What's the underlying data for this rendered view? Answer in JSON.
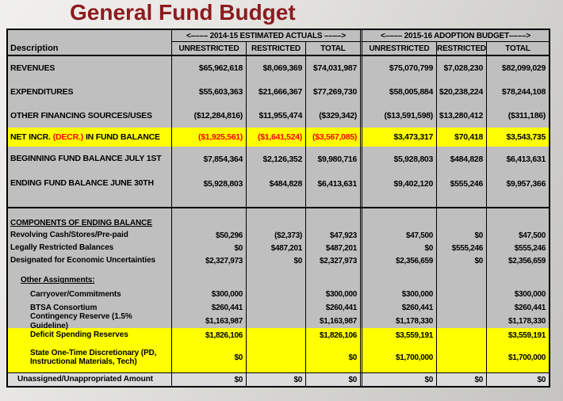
{
  "title": "General Fund Budget",
  "colors": {
    "title_text": "#8c1b1e",
    "highlight_row": "#ffff00",
    "negative_text": "#ff0000",
    "cell_background": "#bfbfbf",
    "light_row_background": "#dcdcdc"
  },
  "table": {
    "description_header": "Description",
    "groups": {
      "g1": {
        "label": "<–––– 2014-15 ESTIMATED ACTUALS ––––>",
        "c1": "UNRESTRICTED",
        "c2": "RESTRICTED",
        "c3": "TOTAL"
      },
      "g2": {
        "label": "<–––– 2015-16 ADOPTION BUDGET––––>",
        "c1": "UNRESTRICTED",
        "c2": "RESTRICTED",
        "c3": "TOTAL"
      }
    },
    "rows": {
      "revenues": {
        "label": "REVENUES",
        "v": [
          "$65,962,618",
          "$8,069,369",
          "$74,031,987",
          "$75,070,799",
          "$7,028,230",
          "$82,099,029"
        ]
      },
      "expenditures": {
        "label": "EXPENDITURES",
        "v": [
          "$55,603,363",
          "$21,666,367",
          "$77,269,730",
          "$58,005,884",
          "$20,238,224",
          "$78,244,108"
        ]
      },
      "other_financing": {
        "label": "OTHER FINANCING SOURCES/USES",
        "v": [
          "($12,284,816)",
          "$11,955,474",
          "($329,342)",
          "($13,591,598)",
          "$13,280,412",
          "($311,186)"
        ]
      },
      "net_change": {
        "label_p1": "NET INCR.",
        "label_p2": "(DECR.)",
        "label_p3": "IN FUND BALANCE",
        "v": [
          "($1,925,561)",
          "($1,641,524)",
          "($3,567,085)",
          "$3,473,317",
          "$70,418",
          "$3,543,735"
        ]
      },
      "beginning_balance": {
        "label": "BEGINNING FUND BALANCE JULY 1ST",
        "v": [
          "$7,854,364",
          "$2,126,352",
          "$9,980,716",
          "$5,928,803",
          "$484,828",
          "$6,413,631"
        ]
      },
      "ending_balance": {
        "label": "ENDING FUND BALANCE JUNE 30TH",
        "v": [
          "$5,928,803",
          "$484,828",
          "$6,413,631",
          "$9,402,120",
          "$555,246",
          "$9,957,366"
        ]
      },
      "components_heading": "COMPONENTS OF ENDING BALANCE",
      "revolving": {
        "label": "Revolving Cash/Stores/Pre-paid",
        "v": [
          "$50,296",
          "($2,373)",
          "$47,923",
          "$47,500",
          "$0",
          "$47,500"
        ]
      },
      "legally_restricted": {
        "label": "Legally Restricted Balances",
        "v": [
          "$0",
          "$487,201",
          "$487,201",
          "$0",
          "$555,246",
          "$555,246"
        ]
      },
      "designated": {
        "label": "Designated for Economic Uncertainties",
        "v": [
          "$2,327,973",
          "$0",
          "$2,327,973",
          "$2,356,659",
          "$0",
          "$2,356,659"
        ]
      },
      "other_assignments_heading": "Other Assignments:",
      "carryover": {
        "label": "Carryover/Commitments",
        "v": [
          "$300,000",
          "",
          "$300,000",
          "$300,000",
          "",
          "$300,000"
        ]
      },
      "btsa": {
        "label": "BTSA Consortium",
        "v": [
          "$260,441",
          "",
          "$260,441",
          "$260,441",
          "",
          "$260,441"
        ]
      },
      "contingency": {
        "label": "Contingency Reserve (1.5% Guideline)",
        "v": [
          "$1,163,987",
          "",
          "$1,163,987",
          "$1,178,330",
          "",
          "$1,178,330"
        ]
      },
      "deficit": {
        "label": "Deficit Spending Reserves",
        "v": [
          "$1,826,106",
          "",
          "$1,826,106",
          "$3,559,191",
          "",
          "$3,559,191"
        ]
      },
      "state_onetime": {
        "label": "State One-Time Discretionary (PD, Instructional Materials, Tech)",
        "v": [
          "$0",
          "",
          "$0",
          "$1,700,000",
          "",
          "$1,700,000"
        ]
      },
      "unassigned": {
        "label": "Unassigned/Unappropriated Amount",
        "v": [
          "$0",
          "$0",
          "$0",
          "$0",
          "$0",
          "$0"
        ]
      }
    }
  }
}
